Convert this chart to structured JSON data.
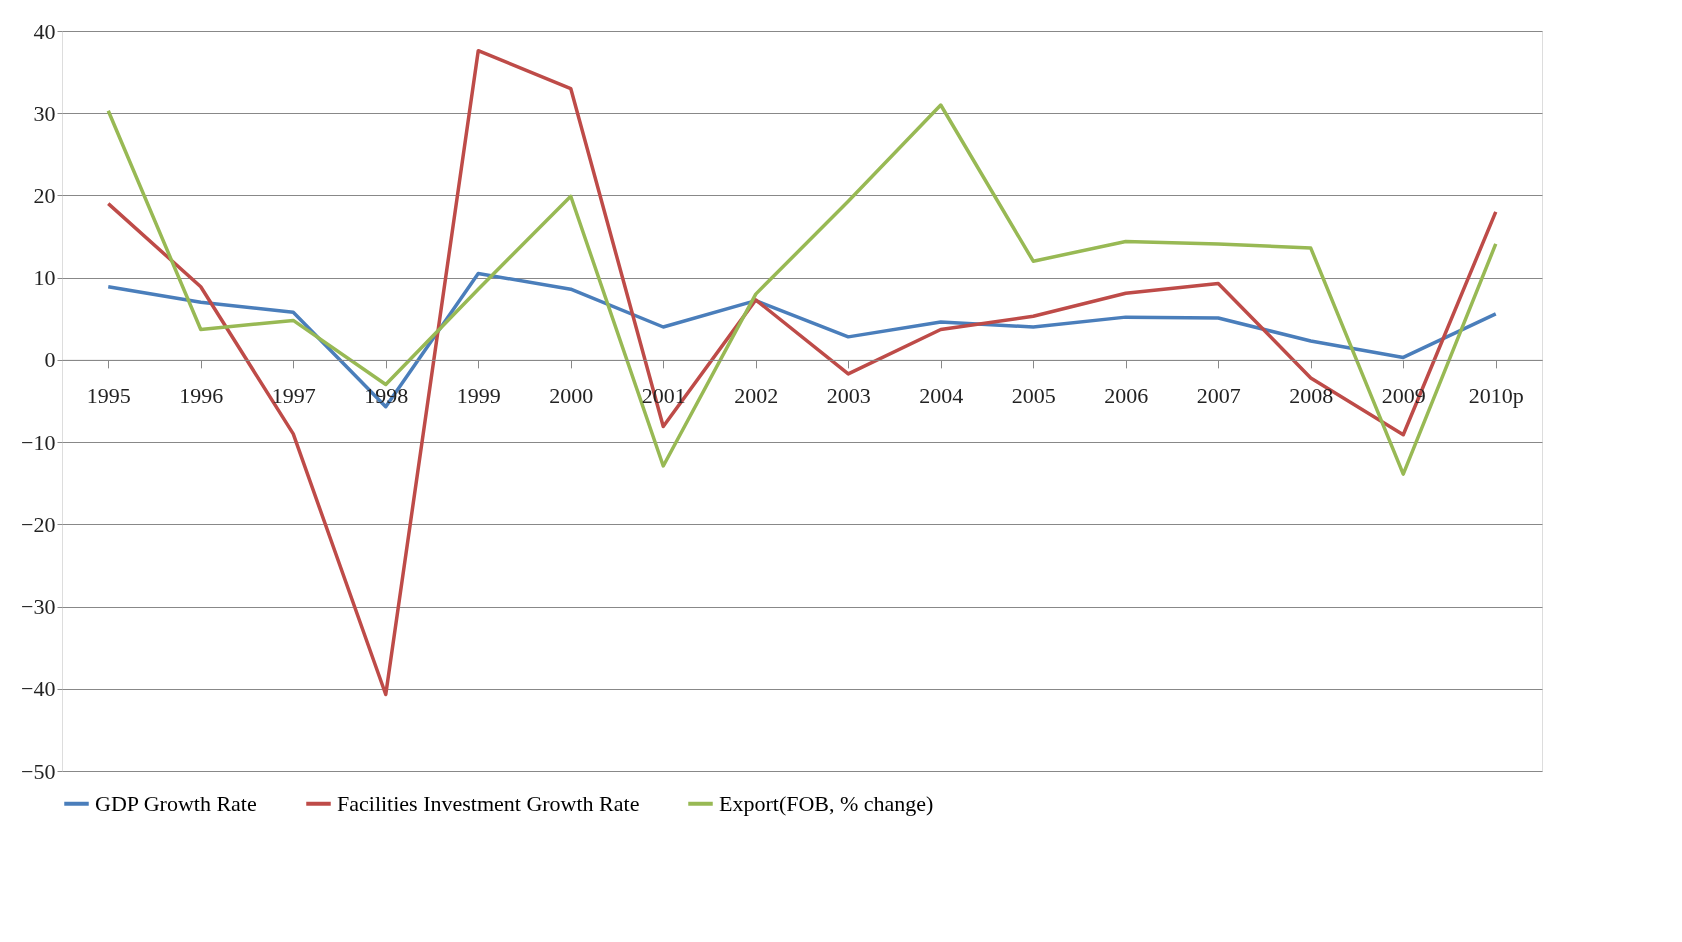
{
  "chart_data": {
    "type": "line",
    "categories": [
      "1995",
      "1996",
      "1997",
      "1998",
      "1999",
      "2000",
      "2001",
      "2002",
      "2003",
      "2004",
      "2005",
      "2006",
      "2007",
      "2008",
      "2009",
      "2010p"
    ],
    "series": [
      {
        "name": "GDP Growth Rate",
        "color": "#4a7ebb",
        "values": [
          8.9,
          7.0,
          5.8,
          -5.7,
          10.5,
          8.6,
          4.0,
          7.2,
          2.8,
          4.6,
          4.0,
          5.2,
          5.1,
          2.3,
          0.3,
          5.6
        ]
      },
      {
        "name": "Facilities Investment Growth Rate",
        "color": "#be4b48",
        "values": [
          19.0,
          8.9,
          -9.0,
          -40.7,
          37.6,
          33.0,
          -8.1,
          7.3,
          -1.7,
          3.7,
          5.3,
          8.1,
          9.3,
          -2.2,
          -9.1,
          18.0
        ]
      },
      {
        "name": "Export(FOB, % change)",
        "color": "#98b954",
        "values": [
          30.3,
          3.7,
          4.8,
          -3.0,
          8.6,
          19.9,
          -12.9,
          8.0,
          19.3,
          31.0,
          12.0,
          14.4,
          14.1,
          13.6,
          -13.9,
          14.1
        ]
      }
    ],
    "ylim": [
      -50,
      40
    ],
    "yticks": [
      -50,
      -40,
      -30,
      -20,
      -10,
      0,
      10,
      20,
      30,
      40
    ],
    "grid": "y",
    "legend": "bottom",
    "marker": "none",
    "line_style": "solid"
  }
}
